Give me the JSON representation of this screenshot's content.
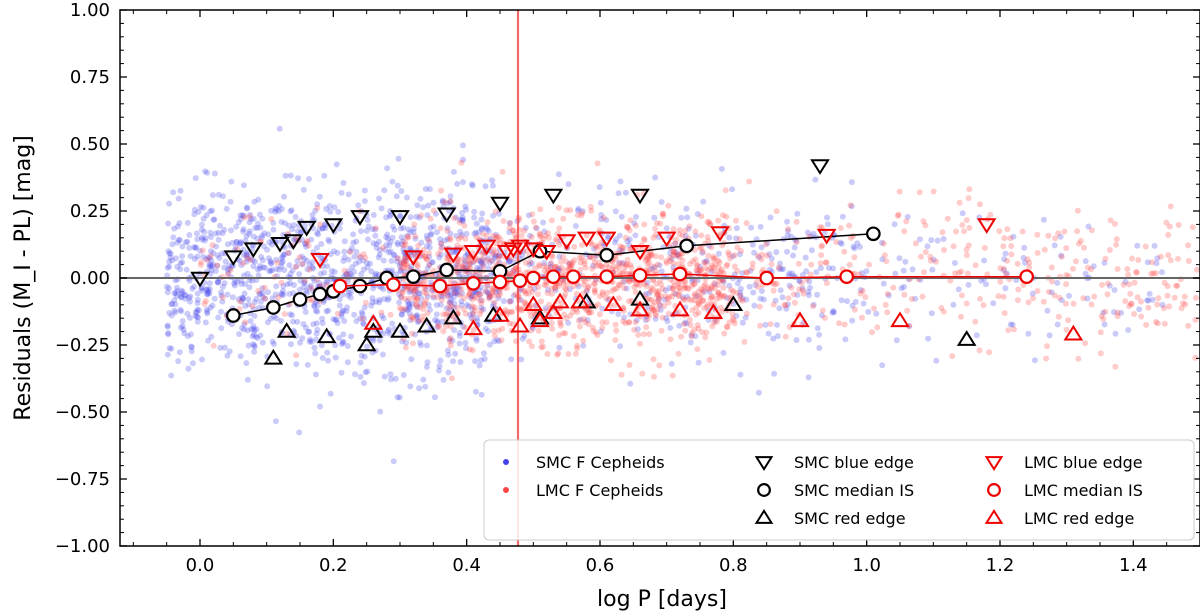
{
  "chart_data": {
    "type": "scatter",
    "xlabel": "log P [days]",
    "ylabel": "Residuals (M_I - PL) [mag]",
    "xlim": [
      -0.12,
      1.5
    ],
    "ylim": [
      -1.0,
      1.0
    ],
    "xticks": [
      0.0,
      0.2,
      0.4,
      0.6,
      0.8,
      1.0,
      1.2,
      1.4
    ],
    "yticks": [
      -1.0,
      -0.75,
      -0.5,
      -0.25,
      0.0,
      0.25,
      0.5,
      0.75,
      1.0
    ],
    "xtick_labels": [
      "0.0",
      "0.2",
      "0.4",
      "0.6",
      "0.8",
      "1.0",
      "1.2",
      "1.4"
    ],
    "ytick_labels": [
      "−1.00",
      "−0.75",
      "−0.50",
      "−0.25",
      "0.00",
      "0.25",
      "0.50",
      "0.75",
      "1.00"
    ],
    "hline_y": 0.0,
    "vline_x": 0.477,
    "colors": {
      "smc": "#4444ee",
      "lmc": "#ff4444",
      "black": "#000000",
      "red": "#ee0000",
      "hline": "#666666",
      "vline": "#ee4444"
    },
    "clouds": [
      {
        "name": "SMC F Cepheids",
        "color": "#4444ee",
        "count": 1700,
        "segments": [
          {
            "x0": -0.05,
            "x1": 0.45,
            "weight": 0.72,
            "sigma": 0.17
          },
          {
            "x0": 0.45,
            "x1": 1.0,
            "weight": 0.22,
            "sigma": 0.15
          },
          {
            "x0": 1.0,
            "x1": 1.45,
            "weight": 0.06,
            "sigma": 0.14
          }
        ]
      },
      {
        "name": "LMC F Cepheids",
        "color": "#ff4444",
        "count": 1500,
        "segments": [
          {
            "x0": 0.3,
            "x1": 0.8,
            "weight": 0.7,
            "sigma": 0.12
          },
          {
            "x0": 0.8,
            "x1": 1.5,
            "weight": 0.23,
            "sigma": 0.13
          },
          {
            "x0": 0.0,
            "x1": 0.3,
            "weight": 0.07,
            "sigma": 0.12
          }
        ]
      }
    ],
    "series": [
      {
        "name": "SMC blue edge",
        "marker": "triangle-down",
        "color": "#000000",
        "line": false,
        "x": [
          0.0,
          0.05,
          0.08,
          0.12,
          0.14,
          0.16,
          0.2,
          0.24,
          0.3,
          0.37,
          0.45,
          0.53,
          0.66,
          0.93
        ],
        "y": [
          0.0,
          0.08,
          0.11,
          0.13,
          0.14,
          0.19,
          0.2,
          0.23,
          0.23,
          0.24,
          0.28,
          0.31,
          0.31,
          0.42
        ]
      },
      {
        "name": "SMC median IS",
        "marker": "circle",
        "color": "#000000",
        "line": true,
        "x": [
          0.05,
          0.11,
          0.15,
          0.18,
          0.2,
          0.24,
          0.28,
          0.32,
          0.37,
          0.45,
          0.51,
          0.61,
          0.73,
          1.01
        ],
        "y": [
          -0.14,
          -0.11,
          -0.08,
          -0.06,
          -0.05,
          -0.03,
          0.0,
          0.005,
          0.03,
          0.025,
          0.1,
          0.085,
          0.12,
          0.165
        ]
      },
      {
        "name": "SMC red edge",
        "marker": "triangle-up",
        "color": "#000000",
        "line": false,
        "x": [
          0.11,
          0.13,
          0.19,
          0.25,
          0.26,
          0.3,
          0.34,
          0.38,
          0.44,
          0.51,
          0.58,
          0.66,
          0.8,
          1.15
        ],
        "y": [
          -0.3,
          -0.2,
          -0.22,
          -0.25,
          -0.2,
          -0.2,
          -0.18,
          -0.15,
          -0.14,
          -0.15,
          -0.09,
          -0.08,
          -0.1,
          -0.23
        ]
      },
      {
        "name": "LMC blue edge",
        "marker": "triangle-down",
        "color": "#ee0000",
        "line": false,
        "x": [
          0.18,
          0.32,
          0.38,
          0.41,
          0.43,
          0.46,
          0.47,
          0.48,
          0.5,
          0.52,
          0.55,
          0.58,
          0.61,
          0.66,
          0.7,
          0.78,
          0.94,
          1.18
        ],
        "y": [
          0.07,
          0.08,
          0.09,
          0.1,
          0.12,
          0.1,
          0.11,
          0.12,
          0.11,
          0.1,
          0.14,
          0.15,
          0.15,
          0.1,
          0.15,
          0.17,
          0.16,
          0.2
        ]
      },
      {
        "name": "LMC median IS",
        "marker": "circle",
        "color": "#ee0000",
        "line": true,
        "x": [
          0.21,
          0.29,
          0.36,
          0.41,
          0.45,
          0.48,
          0.5,
          0.53,
          0.56,
          0.61,
          0.66,
          0.72,
          0.85,
          0.97,
          1.24
        ],
        "y": [
          -0.03,
          -0.025,
          -0.03,
          -0.02,
          -0.015,
          -0.01,
          0.0,
          0.005,
          0.005,
          0.005,
          0.01,
          0.015,
          0.0,
          0.005,
          0.005
        ]
      },
      {
        "name": "LMC red edge",
        "marker": "triangle-up",
        "color": "#ee0000",
        "line": false,
        "x": [
          0.26,
          0.41,
          0.45,
          0.48,
          0.5,
          0.51,
          0.53,
          0.54,
          0.57,
          0.62,
          0.66,
          0.72,
          0.77,
          0.9,
          1.05,
          1.31
        ],
        "y": [
          -0.17,
          -0.19,
          -0.14,
          -0.18,
          -0.1,
          -0.16,
          -0.13,
          -0.09,
          -0.09,
          -0.1,
          -0.12,
          -0.12,
          -0.13,
          -0.16,
          -0.16,
          -0.21
        ]
      }
    ],
    "legend": {
      "placement": "bottom-right",
      "entries": [
        {
          "label": "SMC F Cepheids",
          "marker": "dot",
          "color": "#4444ee"
        },
        {
          "label": "LMC F Cepheids",
          "marker": "dot",
          "color": "#ff4444"
        },
        {
          "label": "SMC blue edge",
          "marker": "triangle-down",
          "color": "#000000"
        },
        {
          "label": "SMC median IS",
          "marker": "circle",
          "color": "#000000"
        },
        {
          "label": "SMC red edge",
          "marker": "triangle-up",
          "color": "#000000"
        },
        {
          "label": "LMC blue edge",
          "marker": "triangle-down",
          "color": "#ee0000"
        },
        {
          "label": "LMC median IS",
          "marker": "circle",
          "color": "#ee0000"
        },
        {
          "label": "LMC red edge",
          "marker": "triangle-up",
          "color": "#ee0000"
        }
      ]
    }
  }
}
